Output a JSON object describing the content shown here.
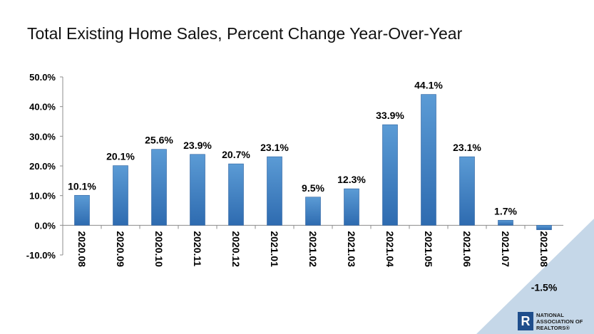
{
  "title": "Total Existing Home Sales, Percent Change Year-Over-Year",
  "logo": {
    "mark": "R",
    "lines": [
      "NATIONAL",
      "ASSOCIATION OF",
      "REALTORS®"
    ]
  },
  "colors": {
    "bar_top": "#5b9bd5",
    "bar_bottom": "#2e6bb0",
    "accent": "#c5d7e8"
  },
  "chart_data": {
    "type": "bar",
    "title": "Total Existing Home Sales, Percent Change Year-Over-Year",
    "xlabel": "",
    "ylabel": "",
    "ylim": [
      -10,
      50
    ],
    "yticks": [
      -10,
      0,
      10,
      20,
      30,
      40,
      50
    ],
    "ytick_labels": [
      "-10.0%",
      "0.0%",
      "10.0%",
      "20.0%",
      "30.0%",
      "40.0%",
      "50.0%"
    ],
    "grid": false,
    "legend": "none",
    "categories": [
      "2020.08",
      "2020.09",
      "2020.10",
      "2020.11",
      "2020.12",
      "2021.01",
      "2021.02",
      "2021.03",
      "2021.04",
      "2021.05",
      "2021.06",
      "2021.07",
      "2021.08"
    ],
    "values": [
      10.1,
      20.1,
      25.6,
      23.9,
      20.7,
      23.1,
      9.5,
      12.3,
      33.9,
      44.1,
      23.1,
      1.7,
      -1.5
    ],
    "value_labels": [
      "10.1%",
      "20.1%",
      "25.6%",
      "23.9%",
      "20.7%",
      "23.1%",
      "9.5%",
      "12.3%",
      "33.9%",
      "44.1%",
      "23.1%",
      "1.7%",
      "-1.5%"
    ]
  }
}
